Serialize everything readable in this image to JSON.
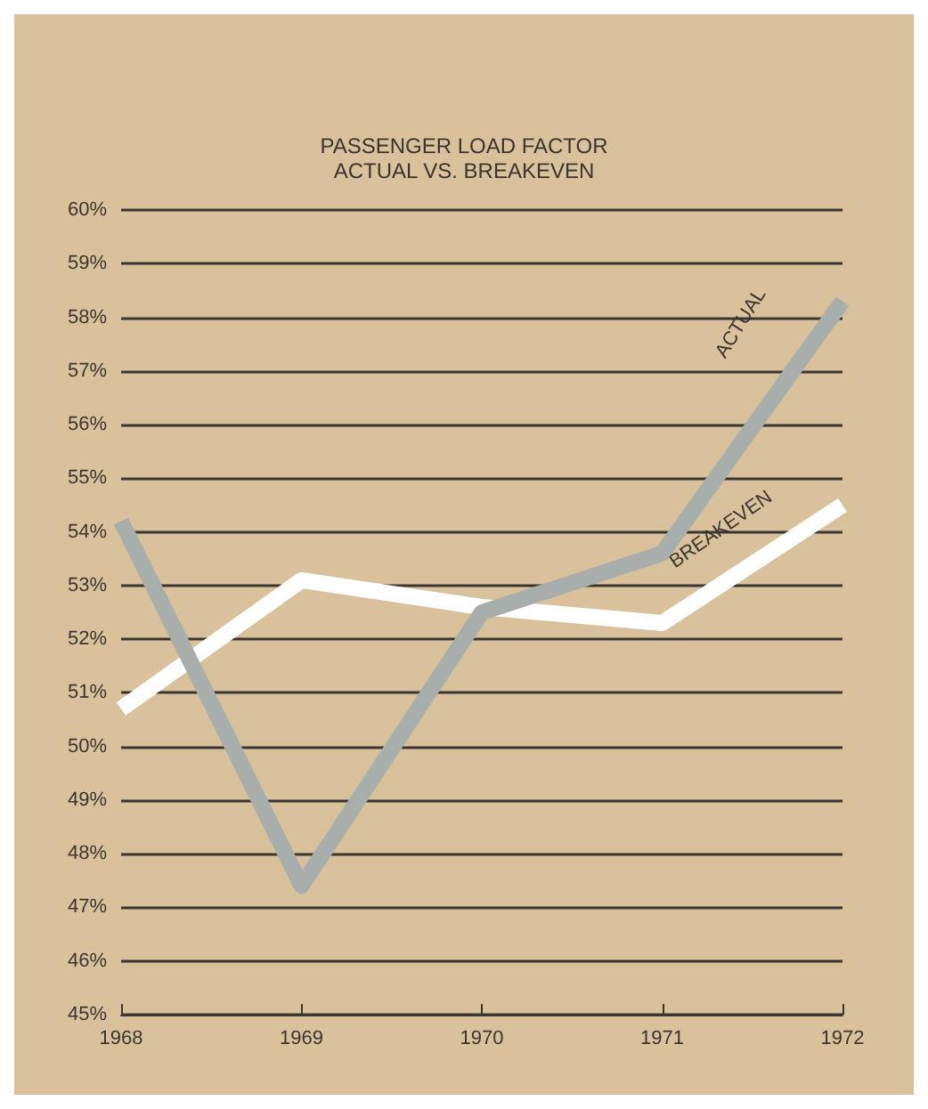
{
  "chart_data": {
    "type": "line",
    "title": "PASSENGER LOAD FACTOR\nACTUAL VS. BREAKEVEN",
    "categories": [
      "1968",
      "1969",
      "1970",
      "1971",
      "1972"
    ],
    "series": [
      {
        "name": "ACTUAL",
        "color": "#a8aeab",
        "values": [
          54.2,
          47.4,
          52.5,
          53.6,
          58.3
        ]
      },
      {
        "name": "BREAKEVEN",
        "color": "#ffffff",
        "values": [
          50.7,
          53.1,
          52.6,
          52.3,
          54.5
        ]
      }
    ],
    "ylim": [
      45,
      60
    ],
    "yticks": [
      {
        "value": 45,
        "label": "45%"
      },
      {
        "value": 46,
        "label": "46%"
      },
      {
        "value": 47,
        "label": "47%"
      },
      {
        "value": 48,
        "label": "48%"
      },
      {
        "value": 49,
        "label": "49%"
      },
      {
        "value": 50,
        "label": "50%"
      },
      {
        "value": 51,
        "label": "51%"
      },
      {
        "value": 52,
        "label": "52%"
      },
      {
        "value": 53,
        "label": "53%"
      },
      {
        "value": 54,
        "label": "54%"
      },
      {
        "value": 55,
        "label": "55%"
      },
      {
        "value": 56,
        "label": "56%"
      },
      {
        "value": 57,
        "label": "57%"
      },
      {
        "value": 58,
        "label": "58%"
      },
      {
        "value": 59,
        "label": "59%"
      },
      {
        "value": 60,
        "label": "60%"
      }
    ],
    "grid": "y",
    "legend": false,
    "marker": "none",
    "line_style": "solid"
  }
}
